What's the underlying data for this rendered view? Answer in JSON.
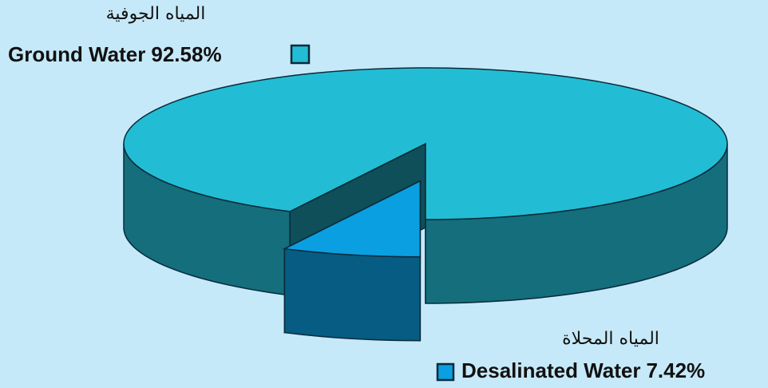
{
  "chart_data": {
    "type": "pie",
    "categories": [
      "Ground Water",
      "Desalinated Water"
    ],
    "arabic_labels": [
      "المياه الجوفية",
      "المياه المحلاة"
    ],
    "values": [
      92.58,
      7.42
    ],
    "value_labels": [
      "92.58%",
      "7.42%"
    ],
    "colors": [
      "#22bdd5",
      "#0a9fe0"
    ],
    "explode": [
      0,
      1
    ]
  }
}
